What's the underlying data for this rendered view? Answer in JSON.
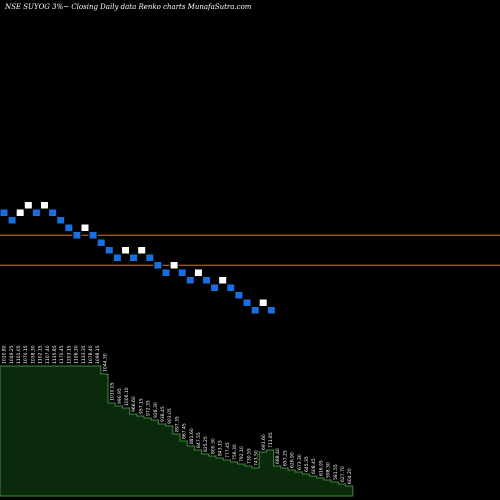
{
  "header": {
    "title": "NSE SUYOG 3%~  Closing Daily data  Renko  charts MunafaSutra.com"
  },
  "chart_data": {
    "type": "renko",
    "title": "NSE SUYOG 3%~  Closing Daily data  Renko  charts MunafaSutra.com",
    "box_size_pct": 3,
    "colors": {
      "background": "#000000",
      "up_brick": "#ffffff",
      "down_brick": "#1a6fe0",
      "brick_edge": "#000000",
      "level_line": "#d4781e",
      "volume_fill": "#0b2a0b",
      "volume_edge": "#3c8c3c",
      "label": "#ffffff"
    },
    "bricks": [
      {
        "dir": "down",
        "level": 210
      },
      {
        "dir": "down",
        "level": 209
      },
      {
        "dir": "up",
        "level": 210
      },
      {
        "dir": "up",
        "level": 211
      },
      {
        "dir": "down",
        "level": 210
      },
      {
        "dir": "up",
        "level": 211
      },
      {
        "dir": "down",
        "level": 210
      },
      {
        "dir": "down",
        "level": 209
      },
      {
        "dir": "down",
        "level": 208
      },
      {
        "dir": "down",
        "level": 207
      },
      {
        "dir": "up",
        "level": 208
      },
      {
        "dir": "down",
        "level": 207
      },
      {
        "dir": "down",
        "level": 206
      },
      {
        "dir": "down",
        "level": 205
      },
      {
        "dir": "down",
        "level": 204
      },
      {
        "dir": "up",
        "level": 205
      },
      {
        "dir": "down",
        "level": 204
      },
      {
        "dir": "up",
        "level": 205
      },
      {
        "dir": "down",
        "level": 204
      },
      {
        "dir": "down",
        "level": 203
      },
      {
        "dir": "down",
        "level": 202
      },
      {
        "dir": "up",
        "level": 203
      },
      {
        "dir": "down",
        "level": 202
      },
      {
        "dir": "down",
        "level": 201
      },
      {
        "dir": "up",
        "level": 202
      },
      {
        "dir": "down",
        "level": 201
      },
      {
        "dir": "down",
        "level": 200
      },
      {
        "dir": "up",
        "level": 201
      },
      {
        "dir": "down",
        "level": 200
      },
      {
        "dir": "down",
        "level": 199
      },
      {
        "dir": "down",
        "level": 198
      },
      {
        "dir": "down",
        "level": 197
      },
      {
        "dir": "up",
        "level": 198
      },
      {
        "dir": "down",
        "level": 197
      }
    ],
    "level_lines": [
      207,
      203
    ],
    "volume_bars": [
      {
        "h": 130,
        "label": "1020.80"
      },
      {
        "h": 130,
        "label": "1049.25"
      },
      {
        "h": 130,
        "label": "1101.05"
      },
      {
        "h": 130,
        "label": "1070.15"
      },
      {
        "h": 130,
        "label": "1038.30"
      },
      {
        "h": 130,
        "label": "1102.15"
      },
      {
        "h": 130,
        "label": "1107.40"
      },
      {
        "h": 130,
        "label": "1135.85"
      },
      {
        "h": 130,
        "label": "1170.45"
      },
      {
        "h": 130,
        "label": "1203.15"
      },
      {
        "h": 130,
        "label": "1106.30"
      },
      {
        "h": 130,
        "label": "1133.35"
      },
      {
        "h": 130,
        "label": "1078.40"
      },
      {
        "h": 130,
        "label": "1098.15"
      },
      {
        "h": 122,
        "label": "1044.30"
      },
      {
        "h": 93,
        "label": "1010.05"
      },
      {
        "h": 90,
        "label": "990.95"
      },
      {
        "h": 88,
        "label": "1006.10"
      },
      {
        "h": 82,
        "label": "966.60"
      },
      {
        "h": 80,
        "label": "957.15"
      },
      {
        "h": 78,
        "label": "972.35"
      },
      {
        "h": 76,
        "label": "928.30"
      },
      {
        "h": 72,
        "label": "938.45"
      },
      {
        "h": 70,
        "label": "903.05"
      },
      {
        "h": 62,
        "label": "897.35"
      },
      {
        "h": 55,
        "label": "867.45"
      },
      {
        "h": 50,
        "label": "881.60"
      },
      {
        "h": 46,
        "label": "847.55"
      },
      {
        "h": 42,
        "label": "825.25"
      },
      {
        "h": 40,
        "label": "800.30"
      },
      {
        "h": 38,
        "label": "843.15"
      },
      {
        "h": 36,
        "label": "777.45"
      },
      {
        "h": 34,
        "label": "756.30"
      },
      {
        "h": 32,
        "label": "792.10"
      },
      {
        "h": 30,
        "label": "730.55"
      },
      {
        "h": 28,
        "label": "743.50"
      },
      {
        "h": 44,
        "label": "691.60"
      },
      {
        "h": 46,
        "label": "711.85"
      },
      {
        "h": 30,
        "label": "688.40"
      },
      {
        "h": 28,
        "label": "657.25"
      },
      {
        "h": 26,
        "label": "626.90"
      },
      {
        "h": 24,
        "label": "673.30"
      },
      {
        "h": 22,
        "label": "645.35"
      },
      {
        "h": 20,
        "label": "608.45"
      },
      {
        "h": 18,
        "label": "616.95"
      },
      {
        "h": 16,
        "label": "598.30"
      },
      {
        "h": 14,
        "label": "581.55"
      },
      {
        "h": 12,
        "label": "627.70"
      },
      {
        "h": 10,
        "label": "604.20"
      }
    ]
  }
}
